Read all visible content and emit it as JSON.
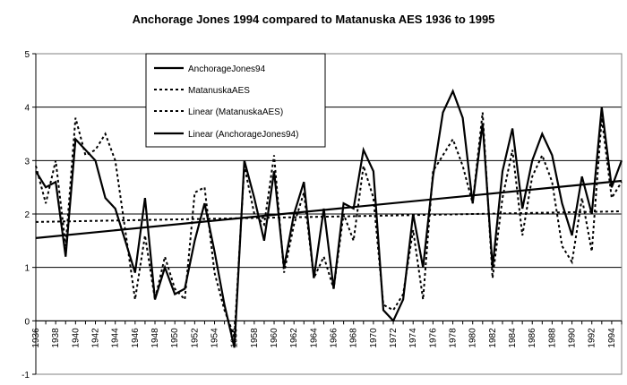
{
  "chart_data": {
    "type": "line",
    "title": "Anchorage Jones 1994 compared to Matanuska AES 1936 to 1995",
    "xlabel": "",
    "ylabel": "",
    "xlim": [
      1936,
      1995
    ],
    "ylim": [
      -1,
      5
    ],
    "y_ticks": [
      -1,
      0,
      1,
      2,
      3,
      4,
      5
    ],
    "x_tick_labels": [
      "1936",
      "1938",
      "1940",
      "1942",
      "1944",
      "1946",
      "1948",
      "1950",
      "1952",
      "1954",
      "1956",
      "1958",
      "1960",
      "1962",
      "1964",
      "1966",
      "1968",
      "1970",
      "1972",
      "1974",
      "1976",
      "1978",
      "1980",
      "1982",
      "1984",
      "1986",
      "1988",
      "1990",
      "1992",
      "1994"
    ],
    "grid": "horizontal",
    "legend_placement": "top-left",
    "x": [
      1936,
      1937,
      1938,
      1939,
      1940,
      1941,
      1942,
      1943,
      1944,
      1945,
      1946,
      1947,
      1948,
      1949,
      1950,
      1951,
      1952,
      1953,
      1954,
      1955,
      1956,
      1957,
      1958,
      1959,
      1960,
      1961,
      1962,
      1963,
      1964,
      1965,
      1966,
      1967,
      1968,
      1969,
      1970,
      1971,
      1972,
      1973,
      1974,
      1975,
      1976,
      1977,
      1978,
      1979,
      1980,
      1981,
      1982,
      1983,
      1984,
      1985,
      1986,
      1987,
      1988,
      1989,
      1990,
      1991,
      1992,
      1993,
      1994,
      1995
    ],
    "series": [
      {
        "name": "AnchorageJones94",
        "style": "solid",
        "values": [
          2.8,
          2.5,
          2.6,
          1.2,
          3.4,
          3.2,
          3.0,
          2.3,
          2.1,
          1.5,
          0.9,
          2.3,
          0.4,
          1.0,
          0.5,
          0.6,
          1.5,
          2.2,
          1.3,
          0.3,
          -0.5,
          3.0,
          2.3,
          1.5,
          2.8,
          1.0,
          2.0,
          2.6,
          0.8,
          2.1,
          0.6,
          2.2,
          2.1,
          3.2,
          2.8,
          0.2,
          0.0,
          0.4,
          2.0,
          1.0,
          2.7,
          3.9,
          4.3,
          3.8,
          2.2,
          3.7,
          1.0,
          2.8,
          3.6,
          2.1,
          3.0,
          3.5,
          3.1,
          2.2,
          1.6,
          2.7,
          2.0,
          4.0,
          2.5,
          3.0
        ]
      },
      {
        "name": "MatanuskaAES",
        "style": "dotted",
        "values": [
          2.9,
          2.2,
          3.0,
          1.4,
          3.8,
          3.1,
          3.2,
          3.5,
          3.0,
          1.7,
          0.4,
          1.6,
          0.4,
          1.2,
          0.6,
          0.4,
          2.4,
          2.5,
          0.9,
          0.2,
          -0.3,
          2.9,
          2.0,
          1.8,
          3.1,
          0.9,
          1.8,
          2.4,
          0.8,
          1.2,
          0.6,
          2.0,
          1.5,
          2.9,
          2.3,
          0.3,
          0.2,
          0.5,
          1.7,
          0.4,
          2.8,
          3.1,
          3.4,
          2.9,
          2.2,
          3.9,
          0.8,
          2.3,
          3.2,
          1.6,
          2.7,
          3.1,
          2.6,
          1.4,
          1.1,
          2.3,
          1.3,
          3.8,
          2.3,
          2.6
        ]
      },
      {
        "name": "Linear (MatanuskaAES)",
        "style": "dotted",
        "trendline": true,
        "values_at_xlim": [
          1.85,
          2.05
        ]
      },
      {
        "name": "Linear (AnchorageJones94)",
        "style": "solid",
        "trendline": true,
        "values_at_xlim": [
          1.55,
          2.62
        ]
      }
    ]
  }
}
